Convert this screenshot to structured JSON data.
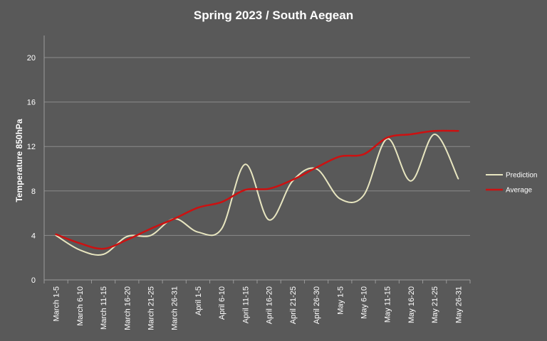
{
  "chart_data": {
    "type": "line",
    "title": "Spring 2023 / South Aegean",
    "xlabel": "",
    "ylabel": "Temperature 850hPa",
    "ylim": [
      0,
      20
    ],
    "yticks": [
      0,
      4,
      8,
      12,
      16,
      20
    ],
    "grid": true,
    "legend_position": "right",
    "categories": [
      "March 1-5",
      "March 6-10",
      "March 11-15",
      "March 16-20",
      "March 21-25",
      "March 26-31",
      "April 1-5",
      "April 6-10",
      "April 11-15",
      "April 16-20",
      "April 21-25",
      "April 26-30",
      "May 1-5",
      "May 6-10",
      "May 11-15",
      "May 16-20",
      "May 21-25",
      "May 26-31"
    ],
    "series": [
      {
        "name": "Prediction",
        "color": "#e8e6c0",
        "values": [
          4.0,
          2.7,
          2.3,
          3.9,
          4.0,
          5.5,
          4.3,
          4.6,
          10.4,
          5.4,
          8.9,
          10.0,
          7.3,
          7.6,
          12.7,
          8.9,
          13.1,
          9.1
        ]
      },
      {
        "name": "Average",
        "color": "#cc1111",
        "values": [
          4.1,
          3.3,
          2.8,
          3.6,
          4.6,
          5.5,
          6.5,
          7.0,
          8.1,
          8.2,
          9.0,
          10.1,
          11.1,
          11.3,
          12.8,
          13.1,
          13.4,
          13.4
        ]
      }
    ]
  }
}
